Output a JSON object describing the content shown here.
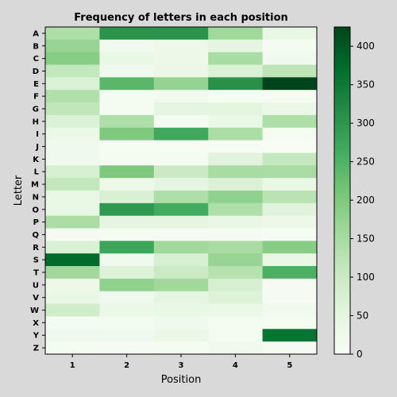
{
  "chart_data": {
    "type": "heatmap",
    "title": "Frequency of letters in each position",
    "xlabel": "Position",
    "ylabel": "Letter",
    "x_categories": [
      "1",
      "2",
      "3",
      "4",
      "5"
    ],
    "y_categories": [
      "A",
      "B",
      "C",
      "D",
      "E",
      "F",
      "G",
      "H",
      "I",
      "J",
      "K",
      "L",
      "M",
      "N",
      "O",
      "P",
      "Q",
      "R",
      "S",
      "T",
      "U",
      "V",
      "W",
      "X",
      "Y",
      "Z"
    ],
    "values": [
      [
        140,
        305,
        305,
        160,
        40
      ],
      [
        170,
        15,
        30,
        50,
        10
      ],
      [
        190,
        40,
        30,
        150,
        20
      ],
      [
        110,
        20,
        35,
        70,
        120
      ],
      [
        70,
        240,
        175,
        310,
        425
      ],
      [
        135,
        10,
        15,
        10,
        5
      ],
      [
        115,
        10,
        50,
        55,
        35
      ],
      [
        70,
        140,
        10,
        40,
        140
      ],
      [
        35,
        200,
        270,
        145,
        10
      ],
      [
        20,
        2,
        2,
        3,
        1
      ],
      [
        20,
        10,
        10,
        60,
        110
      ],
      [
        80,
        200,
        100,
        150,
        150
      ],
      [
        110,
        30,
        50,
        70,
        40
      ],
      [
        40,
        75,
        140,
        180,
        125
      ],
      [
        40,
        295,
        265,
        140,
        60
      ],
      [
        145,
        50,
        50,
        40,
        30
      ],
      [
        5,
        10,
        5,
        5,
        2
      ],
      [
        70,
        275,
        160,
        150,
        190
      ],
      [
        375,
        20,
        80,
        170,
        40
      ],
      [
        160,
        65,
        100,
        130,
        255
      ],
      [
        30,
        180,
        160,
        80,
        5
      ],
      [
        40,
        20,
        50,
        65,
        5
      ],
      [
        90,
        35,
        40,
        35,
        20
      ],
      [
        8,
        10,
        20,
        10,
        10
      ],
      [
        20,
        20,
        35,
        10,
        360
      ],
      [
        10,
        5,
        10,
        20,
        5
      ]
    ],
    "vmin": 0,
    "vmax": 425,
    "colormap": "Greens",
    "colorbar_ticks": [
      0,
      50,
      100,
      150,
      200,
      250,
      300,
      350,
      400
    ]
  }
}
